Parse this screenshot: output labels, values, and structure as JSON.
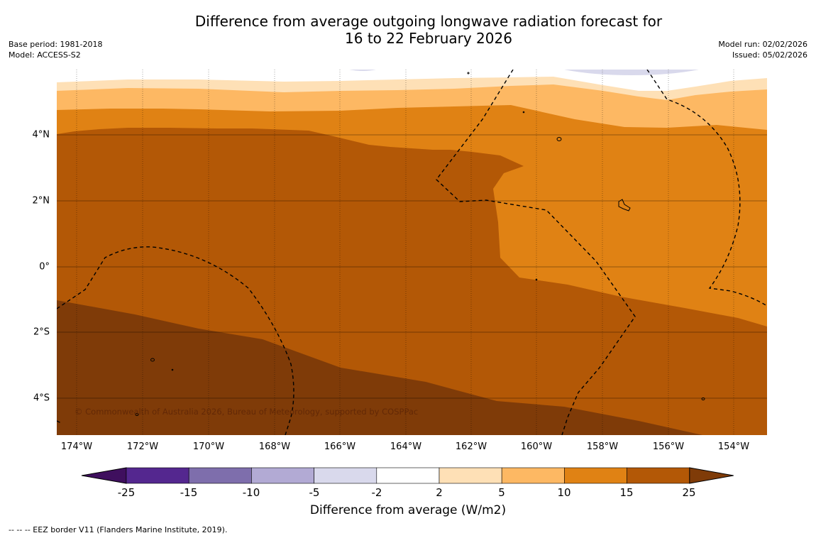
{
  "title_line1": "Difference from average outgoing longwave radiation forecast for",
  "title_line2": "16 to 22 February 2026",
  "base_period": "Base period: 1981-2018",
  "model": "Model: ACCESS-S2",
  "model_run": "Model run: 02/02/2026",
  "issued": "Issued: 05/02/2026",
  "copyright": "© Commonwealth of Australia 2026, Bureau of Meteorology, supported by COSPPac",
  "x_ticks": [
    "174°W",
    "172°W",
    "170°W",
    "168°W",
    "166°W",
    "164°W",
    "162°W",
    "160°W",
    "158°W",
    "156°W",
    "154°W"
  ],
  "y_ticks": [
    "4°N",
    "2°N",
    "0°",
    "2°S",
    "4°S"
  ],
  "colorbar": {
    "labels": [
      "-25",
      "-15",
      "-10",
      "-5",
      "-2",
      "2",
      "5",
      "10",
      "15",
      "25"
    ],
    "colors": [
      "#3f0f5e",
      "#54278f",
      "#7e6eac",
      "#b2aad4",
      "#d9d9ec",
      "#ffffff",
      "#fee0b6",
      "#fdb863",
      "#e08214",
      "#b35806",
      "#7f3b08"
    ],
    "title": "Difference from average (W/m2)"
  },
  "footnote": "--  --  -- EEZ border V11 (Flanders Marine Institute, 2019).",
  "map_data": {
    "lon_range": [
      -174.6,
      -153.0
    ],
    "lat_range": [
      -5.2,
      5.9
    ],
    "levels_wm2": [
      -2,
      2,
      5,
      10,
      15,
      25
    ],
    "regions": [
      {
        "category": "15 to 25",
        "color": "#b35806",
        "location": "western and central region, about 4°N to 2°S"
      },
      {
        "category": "10 to 15",
        "color": "#e08214",
        "location": "eastern region east of 161°W and northern band"
      },
      {
        "category": "above 25",
        "color": "#7f3b08",
        "location": "southwest, south of about 1°S"
      },
      {
        "category": "5 to 10",
        "color": "#fdb863",
        "location": "northern edge, about 5°N"
      },
      {
        "category": "2 to 5",
        "color": "#fee0b6",
        "location": "northern edge, about 5.5°N"
      },
      {
        "category": "-5 to -2",
        "color": "#d9d9ec",
        "location": "top edge near 157°W"
      }
    ]
  }
}
